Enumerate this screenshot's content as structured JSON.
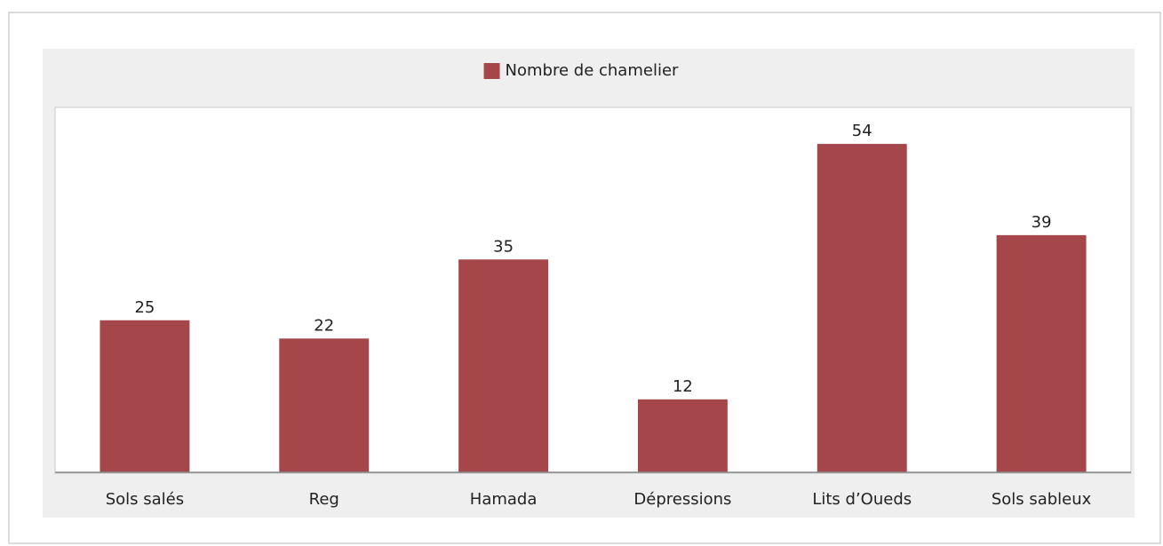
{
  "chart_data": {
    "type": "bar",
    "legend": "Nombre de chamelier",
    "categories": [
      "Sols salés",
      "Reg",
      "Hamada",
      "Dépressions",
      "Lits d’Oueds",
      "Sols sableux"
    ],
    "series": [
      {
        "name": "Nombre de chamelier",
        "color": "#a5474a",
        "values": [
          25,
          22,
          35,
          12,
          54,
          39
        ]
      }
    ],
    "ylim": [
      0,
      60
    ],
    "legend_position": "top"
  }
}
